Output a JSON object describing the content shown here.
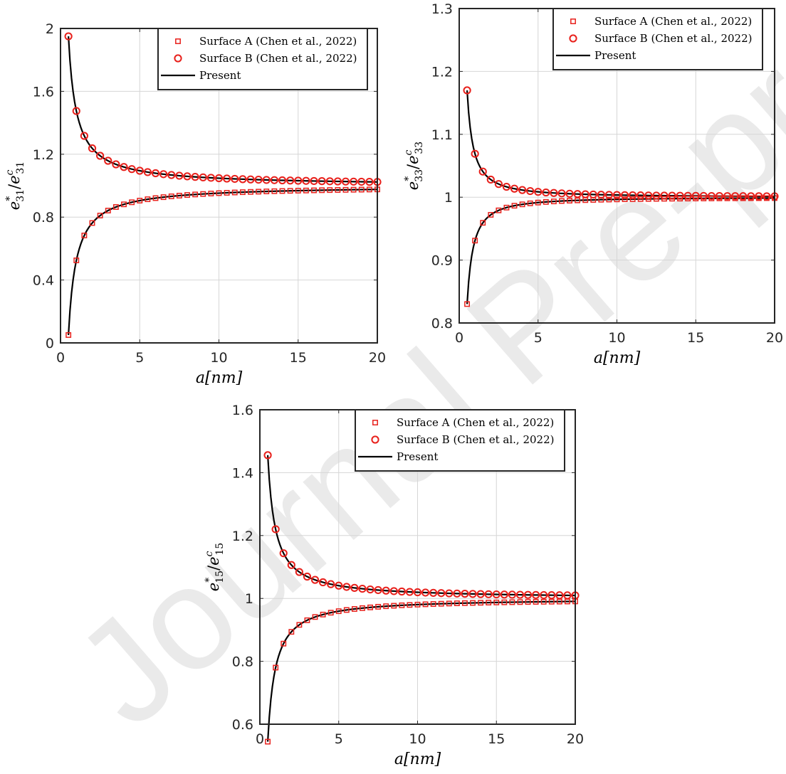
{
  "watermark": "Journal Pre-proofs",
  "colors": {
    "marker": "#e8211c",
    "line": "#000000",
    "grid": "#d6d6d6",
    "axis": "#262626"
  },
  "chart_data": [
    {
      "type": "line",
      "xlabel": "a[nm]",
      "ylabel": {
        "base": "e",
        "sup1": "*",
        "sub1": "31",
        "sep": "/",
        "sup2": "c",
        "sub2": "31"
      },
      "xlim": [
        0,
        20
      ],
      "ylim": [
        0,
        2
      ],
      "xticks": [
        0,
        5,
        10,
        15,
        20
      ],
      "xtick_labels": [
        "0",
        "5",
        "10",
        "15",
        "20"
      ],
      "yticks": [
        0,
        0.4,
        0.8,
        1.2,
        1.6,
        2
      ],
      "ytick_labels": [
        "0",
        "0.4",
        "0.8",
        "1.2",
        "1.6",
        "2"
      ],
      "grid": true,
      "legend_position": "top-right",
      "curve": {
        "y0": 1,
        "amp": 0.475,
        "power": 1
      },
      "x": [
        0.5,
        1,
        1.5,
        2,
        2.5,
        3,
        3.5,
        4,
        4.5,
        5,
        5.5,
        6,
        6.5,
        7,
        7.5,
        8,
        8.5,
        9,
        9.5,
        10,
        10.5,
        11,
        11.5,
        12,
        12.5,
        13,
        13.5,
        14,
        14.5,
        15,
        15.5,
        16,
        16.5,
        17,
        17.5,
        18,
        18.5,
        19,
        19.5,
        20
      ],
      "series": [
        {
          "name": "Surface A (Chen et al., 2022)",
          "marker": "square",
          "sign": -1
        },
        {
          "name": "Surface B (Chen et al., 2022)",
          "marker": "circle",
          "sign": 1
        },
        {
          "name": "Present",
          "marker": "line"
        }
      ]
    },
    {
      "type": "line",
      "xlabel": "a[nm]",
      "ylabel": {
        "base": "e",
        "sup1": "*",
        "sub1": "33",
        "sep": "/",
        "sup2": "c",
        "sub2": "33"
      },
      "xlim": [
        0,
        20
      ],
      "ylim": [
        0.8,
        1.3
      ],
      "xticks": [
        0,
        5,
        10,
        15,
        20
      ],
      "xtick_labels": [
        "0",
        "5",
        "10",
        "15",
        "20"
      ],
      "yticks": [
        0.8,
        0.9,
        1,
        1.1,
        1.2,
        1.3
      ],
      "ytick_labels": [
        "0.8",
        "0.9",
        "1",
        "1.1",
        "1.2",
        "1.3"
      ],
      "grid": true,
      "legend_position": "top-right",
      "curve": {
        "y0": 1,
        "amp": 0.069,
        "power": 1.3
      },
      "x": [
        0.5,
        1,
        1.5,
        2,
        2.5,
        3,
        3.5,
        4,
        4.5,
        5,
        5.5,
        6,
        6.5,
        7,
        7.5,
        8,
        8.5,
        9,
        9.5,
        10,
        10.5,
        11,
        11.5,
        12,
        12.5,
        13,
        13.5,
        14,
        14.5,
        15,
        15.5,
        16,
        16.5,
        17,
        17.5,
        18,
        18.5,
        19,
        19.5,
        20
      ],
      "series": [
        {
          "name": "Surface A (Chen et al., 2022)",
          "marker": "square",
          "sign": -1
        },
        {
          "name": "Surface B (Chen et al., 2022)",
          "marker": "circle",
          "sign": 1
        },
        {
          "name": "Present",
          "marker": "line"
        }
      ]
    },
    {
      "type": "line",
      "xlabel": "a[nm]",
      "ylabel": {
        "base": "e",
        "sup1": "*",
        "sub1": "15",
        "sep": "/",
        "sup2": "c",
        "sub2": "15"
      },
      "xlim": [
        0,
        20
      ],
      "ylim": [
        0.6,
        1.6
      ],
      "xticks": [
        0,
        5,
        10,
        15,
        20
      ],
      "xtick_labels": [
        "0",
        "5",
        "10",
        "15",
        "20"
      ],
      "yticks": [
        0.6,
        0.8,
        1,
        1.2,
        1.4,
        1.6
      ],
      "ytick_labels": [
        "0.6",
        "0.8",
        "1",
        "1.2",
        "1.4",
        "1.6"
      ],
      "grid": true,
      "legend_position": "top-right",
      "curve": {
        "y0": 1,
        "amp": 0.22,
        "power": 1.05
      },
      "x": [
        0.5,
        1,
        1.5,
        2,
        2.5,
        3,
        3.5,
        4,
        4.5,
        5,
        5.5,
        6,
        6.5,
        7,
        7.5,
        8,
        8.5,
        9,
        9.5,
        10,
        10.5,
        11,
        11.5,
        12,
        12.5,
        13,
        13.5,
        14,
        14.5,
        15,
        15.5,
        16,
        16.5,
        17,
        17.5,
        18,
        18.5,
        19,
        19.5,
        20
      ],
      "series": [
        {
          "name": "Surface A (Chen et al., 2022)",
          "marker": "square",
          "sign": -1
        },
        {
          "name": "Surface B (Chen et al., 2022)",
          "marker": "circle",
          "sign": 1
        },
        {
          "name": "Present",
          "marker": "line"
        }
      ]
    }
  ]
}
